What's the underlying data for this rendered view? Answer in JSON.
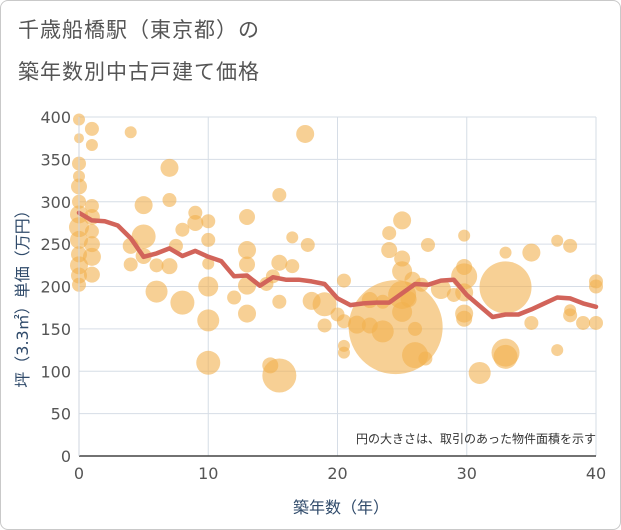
{
  "chart_data": {
    "type": "scatter",
    "title": "千歳船橋駅（東京都）の",
    "subtitle": "築年数別中古戸建て価格",
    "xlabel": "築年数（年）",
    "ylabel": "坪（3.3㎡）単価（万円）",
    "xlim": [
      0,
      40
    ],
    "ylim": [
      0,
      400
    ],
    "xticks": [
      0,
      10,
      20,
      30,
      40
    ],
    "yticks": [
      0,
      50,
      100,
      150,
      200,
      250,
      300,
      350,
      400
    ],
    "note": "円の大きさは、取引のあった物件面積を示す",
    "bubble_color": "#f2b04e",
    "line_color": "#d2645a",
    "bubbles": [
      {
        "x": 0,
        "y": 397,
        "s": 6
      },
      {
        "x": 0,
        "y": 375,
        "s": 5
      },
      {
        "x": 0,
        "y": 345,
        "s": 7
      },
      {
        "x": 0,
        "y": 330,
        "s": 6
      },
      {
        "x": 0,
        "y": 318,
        "s": 8
      },
      {
        "x": 0,
        "y": 300,
        "s": 7
      },
      {
        "x": 0,
        "y": 285,
        "s": 9
      },
      {
        "x": 0,
        "y": 270,
        "s": 10
      },
      {
        "x": 0,
        "y": 255,
        "s": 9
      },
      {
        "x": 0,
        "y": 238,
        "s": 8
      },
      {
        "x": 0,
        "y": 225,
        "s": 9
      },
      {
        "x": 0,
        "y": 213,
        "s": 8
      },
      {
        "x": 0,
        "y": 202,
        "s": 7
      },
      {
        "x": 1,
        "y": 386,
        "s": 7
      },
      {
        "x": 1,
        "y": 367,
        "s": 6
      },
      {
        "x": 1,
        "y": 295,
        "s": 7
      },
      {
        "x": 1,
        "y": 282,
        "s": 8
      },
      {
        "x": 1,
        "y": 265,
        "s": 7
      },
      {
        "x": 1,
        "y": 250,
        "s": 8
      },
      {
        "x": 1,
        "y": 235,
        "s": 9
      },
      {
        "x": 1,
        "y": 214,
        "s": 8
      },
      {
        "x": 4,
        "y": 382,
        "s": 6
      },
      {
        "x": 4,
        "y": 248,
        "s": 8
      },
      {
        "x": 4,
        "y": 226,
        "s": 7
      },
      {
        "x": 5,
        "y": 296,
        "s": 9
      },
      {
        "x": 5,
        "y": 259,
        "s": 12
      },
      {
        "x": 5,
        "y": 236,
        "s": 8
      },
      {
        "x": 6,
        "y": 225,
        "s": 7
      },
      {
        "x": 6,
        "y": 194,
        "s": 11
      },
      {
        "x": 7,
        "y": 340,
        "s": 9
      },
      {
        "x": 7,
        "y": 302,
        "s": 7
      },
      {
        "x": 7,
        "y": 224,
        "s": 8
      },
      {
        "x": 7.5,
        "y": 248,
        "s": 7
      },
      {
        "x": 8,
        "y": 267,
        "s": 7
      },
      {
        "x": 8,
        "y": 181,
        "s": 12
      },
      {
        "x": 9,
        "y": 287,
        "s": 7
      },
      {
        "x": 9,
        "y": 275,
        "s": 8
      },
      {
        "x": 10,
        "y": 277,
        "s": 7
      },
      {
        "x": 10,
        "y": 255,
        "s": 7
      },
      {
        "x": 10,
        "y": 227,
        "s": 6
      },
      {
        "x": 10,
        "y": 200,
        "s": 10
      },
      {
        "x": 10,
        "y": 160,
        "s": 11
      },
      {
        "x": 10,
        "y": 110,
        "s": 12
      },
      {
        "x": 12,
        "y": 187,
        "s": 7
      },
      {
        "x": 13,
        "y": 282,
        "s": 8
      },
      {
        "x": 13,
        "y": 243,
        "s": 9
      },
      {
        "x": 13,
        "y": 226,
        "s": 8
      },
      {
        "x": 13,
        "y": 201,
        "s": 9
      },
      {
        "x": 13,
        "y": 168,
        "s": 9
      },
      {
        "x": 14.5,
        "y": 203,
        "s": 7
      },
      {
        "x": 15,
        "y": 212,
        "s": 7
      },
      {
        "x": 14.8,
        "y": 107,
        "s": 8
      },
      {
        "x": 15.5,
        "y": 308,
        "s": 7
      },
      {
        "x": 15.5,
        "y": 228,
        "s": 8
      },
      {
        "x": 15.5,
        "y": 182,
        "s": 7
      },
      {
        "x": 15.5,
        "y": 95,
        "s": 17
      },
      {
        "x": 16.5,
        "y": 258,
        "s": 6
      },
      {
        "x": 16.5,
        "y": 224,
        "s": 7
      },
      {
        "x": 17.5,
        "y": 380,
        "s": 9
      },
      {
        "x": 17.7,
        "y": 249,
        "s": 7
      },
      {
        "x": 18,
        "y": 183,
        "s": 9
      },
      {
        "x": 19,
        "y": 179,
        "s": 12
      },
      {
        "x": 19,
        "y": 154,
        "s": 7
      },
      {
        "x": 20,
        "y": 167,
        "s": 7
      },
      {
        "x": 20.5,
        "y": 207,
        "s": 7
      },
      {
        "x": 20.5,
        "y": 159,
        "s": 7
      },
      {
        "x": 20.5,
        "y": 130,
        "s": 6
      },
      {
        "x": 20.5,
        "y": 122,
        "s": 6
      },
      {
        "x": 21.5,
        "y": 155,
        "s": 9
      },
      {
        "x": 22.5,
        "y": 184,
        "s": 8
      },
      {
        "x": 22.5,
        "y": 154,
        "s": 8
      },
      {
        "x": 23.5,
        "y": 182,
        "s": 7
      },
      {
        "x": 23.5,
        "y": 147,
        "s": 11
      },
      {
        "x": 24,
        "y": 263,
        "s": 7
      },
      {
        "x": 24,
        "y": 243,
        "s": 8
      },
      {
        "x": 24.5,
        "y": 152,
        "s": 47
      },
      {
        "x": 25,
        "y": 278,
        "s": 9
      },
      {
        "x": 25,
        "y": 233,
        "s": 8
      },
      {
        "x": 25,
        "y": 218,
        "s": 10
      },
      {
        "x": 25,
        "y": 190,
        "s": 14
      },
      {
        "x": 25,
        "y": 170,
        "s": 10
      },
      {
        "x": 25.5,
        "y": 185,
        "s": 8
      },
      {
        "x": 25.8,
        "y": 208,
        "s": 8
      },
      {
        "x": 26,
        "y": 150,
        "s": 7
      },
      {
        "x": 26,
        "y": 119,
        "s": 13
      },
      {
        "x": 26.5,
        "y": 202,
        "s": 7
      },
      {
        "x": 26.8,
        "y": 115,
        "s": 7
      },
      {
        "x": 27,
        "y": 249,
        "s": 7
      },
      {
        "x": 28,
        "y": 197,
        "s": 10
      },
      {
        "x": 29,
        "y": 190,
        "s": 7
      },
      {
        "x": 29.8,
        "y": 260,
        "s": 6
      },
      {
        "x": 29.8,
        "y": 223,
        "s": 8
      },
      {
        "x": 29.8,
        "y": 212,
        "s": 13
      },
      {
        "x": 29.8,
        "y": 193,
        "s": 9
      },
      {
        "x": 29.8,
        "y": 168,
        "s": 9
      },
      {
        "x": 29.8,
        "y": 162,
        "s": 8
      },
      {
        "x": 31,
        "y": 98,
        "s": 11
      },
      {
        "x": 33,
        "y": 240,
        "s": 6
      },
      {
        "x": 33,
        "y": 199,
        "s": 26
      },
      {
        "x": 33,
        "y": 122,
        "s": 14
      },
      {
        "x": 33,
        "y": 117,
        "s": 12
      },
      {
        "x": 35,
        "y": 240,
        "s": 9
      },
      {
        "x": 35,
        "y": 157,
        "s": 7
      },
      {
        "x": 37,
        "y": 254,
        "s": 6
      },
      {
        "x": 37,
        "y": 125,
        "s": 6
      },
      {
        "x": 38,
        "y": 248,
        "s": 7
      },
      {
        "x": 38,
        "y": 166,
        "s": 7
      },
      {
        "x": 38,
        "y": 172,
        "s": 6
      },
      {
        "x": 39,
        "y": 157,
        "s": 7
      },
      {
        "x": 40,
        "y": 206,
        "s": 7
      },
      {
        "x": 40,
        "y": 200,
        "s": 7
      },
      {
        "x": 40,
        "y": 157,
        "s": 7
      }
    ],
    "trend": [
      {
        "x": 0,
        "y": 287
      },
      {
        "x": 1,
        "y": 278
      },
      {
        "x": 2,
        "y": 277
      },
      {
        "x": 3,
        "y": 272
      },
      {
        "x": 4,
        "y": 257
      },
      {
        "x": 5,
        "y": 235
      },
      {
        "x": 6,
        "y": 239
      },
      {
        "x": 7,
        "y": 245
      },
      {
        "x": 8,
        "y": 236
      },
      {
        "x": 9,
        "y": 242
      },
      {
        "x": 10,
        "y": 235
      },
      {
        "x": 11,
        "y": 230
      },
      {
        "x": 12,
        "y": 212
      },
      {
        "x": 13,
        "y": 213
      },
      {
        "x": 14,
        "y": 201
      },
      {
        "x": 15,
        "y": 211
      },
      {
        "x": 16,
        "y": 208
      },
      {
        "x": 17,
        "y": 208
      },
      {
        "x": 18,
        "y": 206
      },
      {
        "x": 19,
        "y": 203
      },
      {
        "x": 20,
        "y": 186
      },
      {
        "x": 21,
        "y": 178
      },
      {
        "x": 22,
        "y": 180
      },
      {
        "x": 23,
        "y": 181
      },
      {
        "x": 24,
        "y": 181
      },
      {
        "x": 25,
        "y": 192
      },
      {
        "x": 26,
        "y": 203
      },
      {
        "x": 27,
        "y": 202
      },
      {
        "x": 28,
        "y": 207
      },
      {
        "x": 29,
        "y": 208
      },
      {
        "x": 30,
        "y": 190
      },
      {
        "x": 31,
        "y": 177
      },
      {
        "x": 32,
        "y": 164
      },
      {
        "x": 33,
        "y": 167
      },
      {
        "x": 34,
        "y": 167
      },
      {
        "x": 35,
        "y": 173
      },
      {
        "x": 36,
        "y": 180
      },
      {
        "x": 37,
        "y": 187
      },
      {
        "x": 38,
        "y": 186
      },
      {
        "x": 39,
        "y": 180
      },
      {
        "x": 40,
        "y": 176
      }
    ]
  }
}
